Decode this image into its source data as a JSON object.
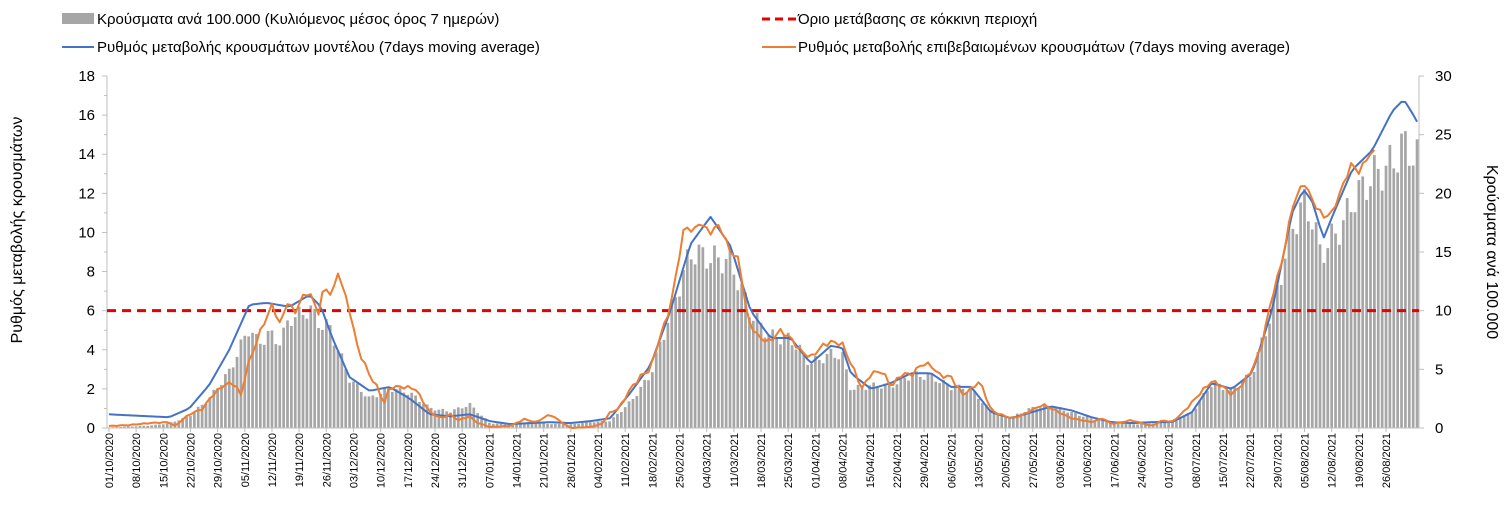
{
  "chart_data": {
    "type": "bar+line",
    "colors": {
      "bars": "#a6a6a6",
      "model_line": "#4472c4",
      "confirmed_line": "#ed7d31",
      "threshold": "#e60000"
    },
    "legend": {
      "bars": "Κρούσματα ανά 100.000 (Κυλιόμενος μέσος όρος 7 ημερών)",
      "threshold": "Όριο μετάβασης σε κόκκινη περιοχή",
      "model": "Ρυθμός μεταβολής κρουσμάτων μοντέλου (7days moving average)",
      "confirmed": "Ρυθμός μεταβολής επιβεβαιωμένων κρουσμάτων (7days moving average)"
    },
    "ylabel_left": "Ρυθμός μεταβολής κρουσμάτων",
    "ylabel_right": "Κρούσματα ανά 100.000",
    "ylim_left": [
      0,
      18
    ],
    "ylim_right": [
      0,
      30
    ],
    "yticks_left": [
      "0",
      "2",
      "4",
      "6",
      "8",
      "10",
      "12",
      "14",
      "16",
      "18"
    ],
    "yticks_right": [
      "0",
      "5",
      "10",
      "15",
      "20",
      "25",
      "30"
    ],
    "threshold_value": 6,
    "x_start": "2020-10-01",
    "n_days": 338,
    "x_tick_labels": [
      "01/10/2020",
      "08/10/2020",
      "15/10/2020",
      "22/10/2020",
      "29/10/2020",
      "05/11/2020",
      "12/11/2020",
      "19/11/2020",
      "26/11/2020",
      "03/12/2020",
      "10/12/2020",
      "17/12/2020",
      "24/12/2020",
      "31/12/2020",
      "07/01/2021",
      "14/01/2021",
      "21/01/2021",
      "28/01/2021",
      "04/02/2021",
      "11/02/2021",
      "18/02/2021",
      "25/02/2021",
      "04/03/2021",
      "11/03/2021",
      "18/03/2021",
      "25/03/2021",
      "01/04/2021",
      "08/04/2021",
      "15/04/2021",
      "22/04/2021",
      "29/04/2021",
      "06/05/2021",
      "13/05/2021",
      "20/05/2021",
      "27/05/2021",
      "03/06/2021",
      "10/06/2021",
      "17/06/2021",
      "24/06/2021",
      "01/07/2021",
      "08/07/2021",
      "15/07/2021",
      "22/07/2021",
      "29/07/2021",
      "05/08/2021",
      "12/08/2021",
      "19/08/2021",
      "26/08/2021"
    ],
    "model_keypoints": [
      [
        0,
        0.7
      ],
      [
        14,
        0.6
      ],
      [
        21,
        0.55
      ],
      [
        28,
        1.0
      ],
      [
        35,
        2.2
      ],
      [
        42,
        4.0
      ],
      [
        49,
        6.3
      ],
      [
        55,
        6.4
      ],
      [
        63,
        6.2
      ],
      [
        70,
        6.8
      ],
      [
        74,
        6.2
      ],
      [
        78,
        4.6
      ],
      [
        84,
        2.6
      ],
      [
        91,
        1.9
      ],
      [
        98,
        2.1
      ],
      [
        105,
        1.5
      ],
      [
        112,
        0.7
      ],
      [
        119,
        0.6
      ],
      [
        126,
        0.7
      ],
      [
        133,
        0.35
      ],
      [
        140,
        0.2
      ],
      [
        147,
        0.25
      ],
      [
        154,
        0.3
      ],
      [
        161,
        0.25
      ],
      [
        168,
        0.35
      ],
      [
        175,
        0.5
      ],
      [
        182,
        1.8
      ],
      [
        189,
        3.2
      ],
      [
        196,
        6.0
      ],
      [
        203,
        9.4
      ],
      [
        210,
        10.8
      ],
      [
        217,
        9.3
      ],
      [
        224,
        6.0
      ],
      [
        231,
        4.6
      ],
      [
        238,
        4.6
      ],
      [
        245,
        3.3
      ],
      [
        252,
        4.2
      ],
      [
        256,
        4.1
      ],
      [
        259,
        2.8
      ],
      [
        266,
        2.0
      ],
      [
        273,
        2.3
      ],
      [
        280,
        2.8
      ],
      [
        287,
        2.8
      ],
      [
        294,
        2.1
      ],
      [
        301,
        2.1
      ],
      [
        308,
        0.8
      ],
      [
        315,
        0.5
      ],
      [
        322,
        0.8
      ],
      [
        329,
        1.1
      ],
      [
        336,
        0.9
      ],
      [
        343,
        0.55
      ],
      [
        350,
        0.3
      ],
      [
        357,
        0.25
      ],
      [
        364,
        0.3
      ],
      [
        371,
        0.3
      ],
      [
        378,
        0.8
      ],
      [
        385,
        2.3
      ],
      [
        392,
        2.0
      ],
      [
        399,
        2.8
      ],
      [
        406,
        6.0
      ],
      [
        413,
        11.0
      ],
      [
        417,
        12.2
      ],
      [
        420,
        11.6
      ],
      [
        424,
        9.7
      ],
      [
        427,
        10.8
      ],
      [
        434,
        13.2
      ],
      [
        441,
        14.2
      ],
      [
        448,
        16.2
      ],
      [
        452,
        16.8
      ],
      [
        455,
        16.1
      ],
      [
        458,
        15.3
      ]
    ],
    "confirmed_keypoints": [
      [
        0,
        0.1
      ],
      [
        7,
        0.15
      ],
      [
        14,
        0.25
      ],
      [
        21,
        0.3
      ],
      [
        23,
        0.1
      ],
      [
        28,
        0.7
      ],
      [
        33,
        1.0
      ],
      [
        35,
        1.5
      ],
      [
        40,
        2.2
      ],
      [
        44,
        2.3
      ],
      [
        46,
        1.6
      ],
      [
        48,
        3.0
      ],
      [
        53,
        5.0
      ],
      [
        57,
        6.3
      ],
      [
        60,
        5.2
      ],
      [
        62,
        6.5
      ],
      [
        65,
        5.9
      ],
      [
        67,
        6.6
      ],
      [
        70,
        7.0
      ],
      [
        73,
        5.8
      ],
      [
        75,
        7.2
      ],
      [
        78,
        6.8
      ],
      [
        80,
        8.0
      ],
      [
        84,
        6.0
      ],
      [
        87,
        4.0
      ],
      [
        91,
        2.7
      ],
      [
        94,
        2.0
      ],
      [
        96,
        1.2
      ],
      [
        98,
        2.1
      ],
      [
        103,
        2.1
      ],
      [
        107,
        2.0
      ],
      [
        112,
        0.8
      ],
      [
        116,
        0.5
      ],
      [
        119,
        0.7
      ],
      [
        122,
        0.4
      ],
      [
        126,
        0.6
      ],
      [
        128,
        0.3
      ],
      [
        133,
        0.05
      ],
      [
        140,
        0.1
      ],
      [
        145,
        0.45
      ],
      [
        149,
        0.3
      ],
      [
        154,
        0.7
      ],
      [
        161,
        0.0
      ],
      [
        168,
        0.05
      ],
      [
        172,
        0.2
      ],
      [
        175,
        0.8
      ],
      [
        178,
        1.0
      ],
      [
        182,
        2.0
      ],
      [
        186,
        2.7
      ],
      [
        189,
        3.0
      ],
      [
        192,
        4.5
      ],
      [
        196,
        6.2
      ],
      [
        201,
        10.4
      ],
      [
        204,
        10.0
      ],
      [
        206,
        10.5
      ],
      [
        210,
        10.0
      ],
      [
        213,
        10.4
      ],
      [
        217,
        9.0
      ],
      [
        220,
        8.6
      ],
      [
        223,
        5.5
      ],
      [
        227,
        4.6
      ],
      [
        231,
        4.4
      ],
      [
        234,
        5.0
      ],
      [
        238,
        4.6
      ],
      [
        241,
        4.0
      ],
      [
        245,
        3.6
      ],
      [
        249,
        4.2
      ],
      [
        252,
        4.4
      ],
      [
        256,
        4.3
      ],
      [
        259,
        3.3
      ],
      [
        263,
        2.0
      ],
      [
        266,
        2.8
      ],
      [
        270,
        2.9
      ],
      [
        273,
        2.1
      ],
      [
        277,
        2.8
      ],
      [
        280,
        2.7
      ],
      [
        284,
        3.3
      ],
      [
        287,
        3.2
      ],
      [
        290,
        2.7
      ],
      [
        294,
        2.6
      ],
      [
        298,
        1.7
      ],
      [
        301,
        2.0
      ],
      [
        304,
        2.4
      ],
      [
        308,
        0.9
      ],
      [
        311,
        0.7
      ],
      [
        315,
        0.5
      ],
      [
        318,
        0.6
      ],
      [
        322,
        0.9
      ],
      [
        326,
        1.2
      ],
      [
        329,
        1.0
      ],
      [
        333,
        0.7
      ],
      [
        336,
        0.5
      ],
      [
        343,
        0.3
      ],
      [
        347,
        0.5
      ],
      [
        350,
        0.2
      ],
      [
        357,
        0.4
      ],
      [
        364,
        0.1
      ],
      [
        368,
        0.4
      ],
      [
        371,
        0.3
      ],
      [
        375,
        0.8
      ],
      [
        378,
        1.3
      ],
      [
        381,
        1.8
      ],
      [
        385,
        2.4
      ],
      [
        389,
        2.1
      ],
      [
        392,
        1.7
      ],
      [
        396,
        2.3
      ],
      [
        399,
        3.0
      ],
      [
        402,
        4.0
      ],
      [
        406,
        6.7
      ],
      [
        410,
        8.8
      ],
      [
        413,
        11.3
      ],
      [
        417,
        12.6
      ],
      [
        421,
        11.4
      ],
      [
        424,
        10.8
      ],
      [
        427,
        11.0
      ],
      [
        431,
        12.5
      ],
      [
        434,
        13.6
      ],
      [
        436,
        13.0
      ],
      [
        440,
        14.0
      ],
      [
        443,
        14.2
      ]
    ],
    "bar_keypoints": [
      [
        0,
        0.05
      ],
      [
        14,
        0.2
      ],
      [
        21,
        0.4
      ],
      [
        28,
        1.0
      ],
      [
        35,
        2.5
      ],
      [
        42,
        4.8
      ],
      [
        49,
        8.6
      ],
      [
        52,
        7.2
      ],
      [
        56,
        8.0
      ],
      [
        60,
        7.3
      ],
      [
        63,
        9.4
      ],
      [
        67,
        9.6
      ],
      [
        70,
        10.3
      ],
      [
        73,
        9.0
      ],
      [
        77,
        8.6
      ],
      [
        84,
        4.2
      ],
      [
        91,
        2.5
      ],
      [
        98,
        3.4
      ],
      [
        105,
        3.0
      ],
      [
        112,
        1.7
      ],
      [
        119,
        1.4
      ],
      [
        126,
        2.0
      ],
      [
        133,
        0.4
      ],
      [
        140,
        0.3
      ],
      [
        147,
        0.5
      ],
      [
        154,
        0.35
      ],
      [
        161,
        0.3
      ],
      [
        168,
        0.5
      ],
      [
        175,
        0.6
      ],
      [
        182,
        2.2
      ],
      [
        189,
        4.5
      ],
      [
        196,
        9.8
      ],
      [
        203,
        15.0
      ],
      [
        210,
        14.5
      ],
      [
        217,
        14.2
      ],
      [
        224,
        9.8
      ],
      [
        231,
        7.8
      ],
      [
        238,
        7.6
      ],
      [
        245,
        5.5
      ],
      [
        252,
        6.3
      ],
      [
        256,
        6.2
      ],
      [
        259,
        3.3
      ],
      [
        266,
        3.6
      ],
      [
        273,
        3.6
      ],
      [
        280,
        4.5
      ],
      [
        287,
        4.4
      ],
      [
        294,
        3.5
      ],
      [
        301,
        3.3
      ],
      [
        308,
        1.4
      ],
      [
        315,
        0.9
      ],
      [
        322,
        1.7
      ],
      [
        329,
        1.9
      ],
      [
        336,
        1.3
      ],
      [
        343,
        0.8
      ],
      [
        350,
        0.5
      ],
      [
        357,
        0.3
      ],
      [
        364,
        0.4
      ],
      [
        371,
        0.6
      ],
      [
        378,
        1.3
      ],
      [
        385,
        3.8
      ],
      [
        392,
        3.2
      ],
      [
        399,
        4.6
      ],
      [
        406,
        10.0
      ],
      [
        413,
        17.0
      ],
      [
        417,
        19.2
      ],
      [
        420,
        18.0
      ],
      [
        423,
        14.8
      ],
      [
        427,
        16.2
      ],
      [
        431,
        17.4
      ],
      [
        434,
        19.4
      ],
      [
        437,
        20.2
      ],
      [
        441,
        21.5
      ],
      [
        448,
        22.5
      ],
      [
        451,
        24.0
      ],
      [
        454,
        23.8
      ],
      [
        458,
        22.5
      ]
    ]
  }
}
